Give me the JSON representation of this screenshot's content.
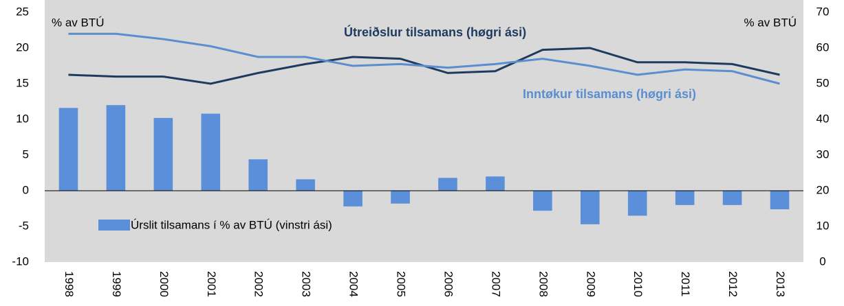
{
  "chart_data": {
    "type": "bar+line",
    "categories": [
      "1998",
      "1999",
      "2000",
      "2001",
      "2002",
      "2003",
      "2004",
      "2005",
      "2006",
      "2007",
      "2008",
      "2009",
      "2010",
      "2011",
      "2012",
      "2013"
    ],
    "series": [
      {
        "name": "Úrslit tilsamans í % av BTÚ (vinstri ási)",
        "type": "bar",
        "color": "#5b8fd9",
        "axis": "y",
        "values": [
          11.6,
          12.0,
          10.2,
          10.8,
          4.4,
          1.6,
          -2.2,
          -1.8,
          1.8,
          2.0,
          -2.8,
          -4.7,
          -3.5,
          -2.0,
          -2.0,
          -2.6
        ]
      },
      {
        "name": "Útreiðslur tilsamans (høgri ási)",
        "type": "line",
        "color": "#1f3a5f",
        "axis": "y2",
        "values": [
          52.5,
          52,
          52,
          50,
          53,
          55.5,
          57.5,
          57,
          53,
          53.5,
          59.5,
          60,
          56,
          56,
          55.5,
          52.5
        ]
      },
      {
        "name": "Inntøkur tilsamans (høgri ási)",
        "type": "line",
        "color": "#5b8ecf",
        "axis": "y2",
        "values": [
          64,
          64,
          62.5,
          60.5,
          57.5,
          57.5,
          55,
          55.5,
          54.5,
          55.5,
          57,
          55,
          52.5,
          54,
          53.5,
          50
        ]
      }
    ],
    "y_axis_label": "% av BTÚ",
    "y2_axis_label": "% av  BTÚ",
    "ylim": [
      -10,
      25
    ],
    "yticks": [
      25,
      20,
      15,
      10,
      5,
      0,
      -5,
      -10
    ],
    "y2lim": [
      0,
      70
    ],
    "y2ticks": [
      70,
      60,
      50,
      40,
      30,
      20,
      10,
      0
    ],
    "grid": false,
    "background": "#d9d9d9"
  }
}
